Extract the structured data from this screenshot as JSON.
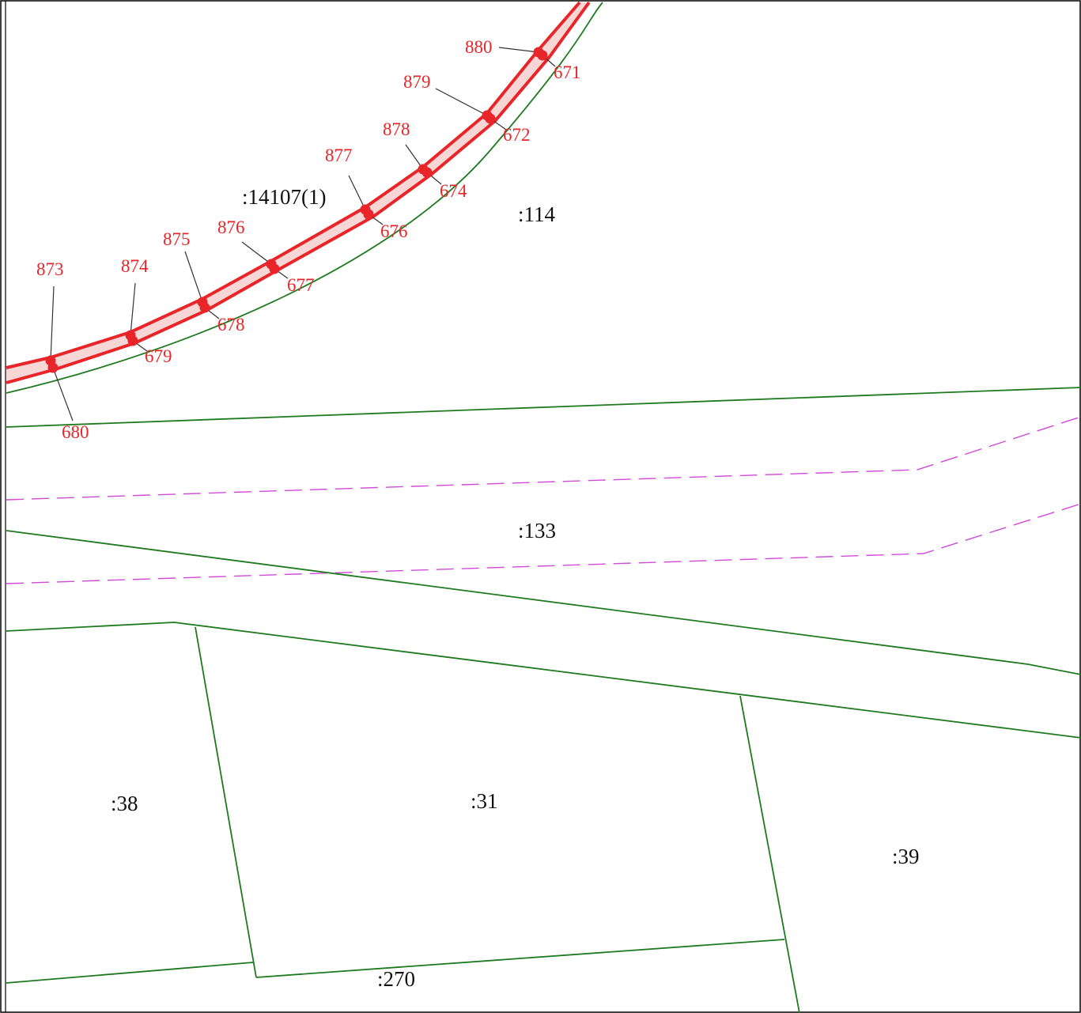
{
  "colors": {
    "frame": "#000000",
    "parcel_boundary": "#1f7a1f",
    "zone_boundary": "#d04ad8",
    "easement": "#e8262a",
    "leader": "#333333",
    "parcel_text": "#111111",
    "point_text": "#e8262a"
  },
  "parcels": [
    {
      "id": "p14107",
      "label": ":14107(1)"
    },
    {
      "id": "p114",
      "label": ":114"
    },
    {
      "id": "p133",
      "label": ":133"
    },
    {
      "id": "p38",
      "label": ":38"
    },
    {
      "id": "p31",
      "label": ":31"
    },
    {
      "id": "p39",
      "label": ":39"
    },
    {
      "id": "p270",
      "label": ":270"
    }
  ],
  "outer_points": [
    "873",
    "874",
    "875",
    "876",
    "877",
    "878",
    "879",
    "880"
  ],
  "inner_points": [
    "680",
    "679",
    "678",
    "677",
    "676",
    "674",
    "672",
    "671"
  ]
}
